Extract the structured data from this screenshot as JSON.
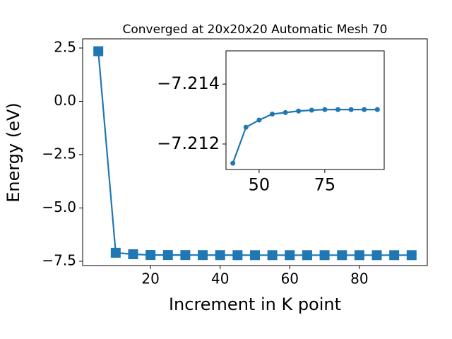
{
  "chart_data": [
    {
      "type": "line",
      "title": "Converged at 20x20x20 Automatic Mesh 70",
      "xlabel": "Increment in K point",
      "ylabel": "Energy (eV)",
      "x": [
        5,
        10,
        15,
        20,
        25,
        30,
        35,
        40,
        45,
        50,
        55,
        60,
        65,
        70,
        75,
        80,
        85,
        90,
        95
      ],
      "series": [
        {
          "color": "#1f77b4",
          "marker": "square",
          "values": [
            2.35,
            -7.1,
            -7.17,
            -7.205,
            -7.207,
            -7.209,
            -7.21,
            -7.21136,
            -7.21256,
            -7.2128,
            -7.213,
            -7.21305,
            -7.2131,
            -7.21313,
            -7.21315,
            -7.21315,
            -7.21315,
            -7.21315,
            -7.21315
          ]
        }
      ],
      "xlim": [
        0.5,
        99.5
      ],
      "ylim": [
        -7.7,
        2.93
      ],
      "xticks": [
        20,
        40,
        60,
        80
      ],
      "yticks": [
        2.5,
        {
          "value": 0,
          "label": "0.0"
        },
        {
          "value": -2.5,
          "label": "−2.5"
        },
        {
          "value": -5,
          "label": "−5.0"
        },
        {
          "value": -7.5,
          "label": "−7.5"
        }
      ]
    },
    {
      "type": "line",
      "x": [
        40,
        45,
        50,
        55,
        60,
        65,
        70,
        75,
        80,
        85,
        90,
        95
      ],
      "series": [
        {
          "color": "#1f77b4",
          "marker": "circle",
          "values": [
            -7.21136,
            -7.21256,
            -7.2128,
            -7.213,
            -7.21305,
            -7.2131,
            -7.21313,
            -7.21315,
            -7.21315,
            -7.21315,
            -7.21315,
            -7.21315
          ]
        }
      ],
      "xlim": [
        37.4,
        97.6
      ],
      "ylim": [
        -7.21115,
        -7.21511
      ],
      "xticks": [
        50,
        75
      ],
      "yticks": [
        {
          "value": -7.214,
          "label": "−7.214"
        },
        {
          "value": -7.212,
          "label": "−7.212"
        }
      ]
    }
  ]
}
